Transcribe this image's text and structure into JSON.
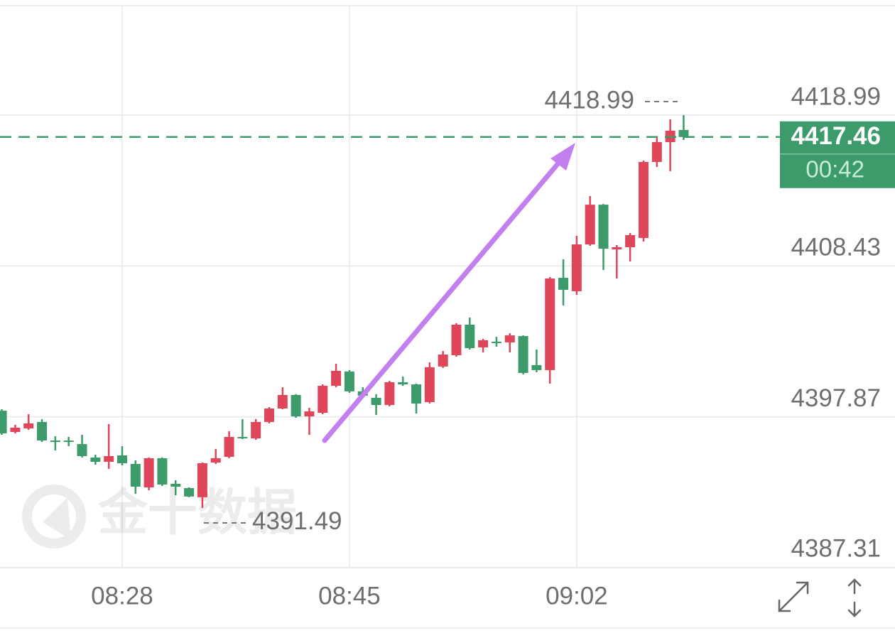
{
  "chart_data": {
    "type": "candlestick",
    "watermark": "金十数据",
    "categories": [
      null,
      null,
      null,
      null,
      null,
      null,
      null,
      null,
      null,
      "08:28",
      null,
      null,
      null,
      null,
      null,
      null,
      null,
      null,
      null,
      null,
      null,
      null,
      null,
      null,
      null,
      null,
      "08:45",
      null,
      null,
      null,
      null,
      null,
      null,
      null,
      null,
      null,
      null,
      null,
      null,
      null,
      null,
      null,
      null,
      "09:02",
      null,
      null,
      null,
      null,
      null,
      null,
      null,
      null
    ],
    "open": [
      4398.3,
      4396.81,
      4397.06,
      4397.51,
      4396.21,
      4396.21,
      4395.96,
      4395.02,
      4394.72,
      4395.17,
      4394.57,
      4392.93,
      4394.97,
      4393.18,
      4392.88,
      4392.24,
      4394.67,
      4395.07,
      4396.46,
      4396.36,
      4397.51,
      4398.45,
      4399.4,
      4397.9,
      4398.15,
      4400.04,
      4401.04,
      4399.65,
      4399.2,
      4398.7,
      4400.29,
      4400.14,
      4398.9,
      4401.39,
      4402.18,
      4404.32,
      4402.73,
      4403.13,
      4403.08,
      4403.52,
      4401.49,
      4401.14,
      4407.6,
      4406.66,
      4409.94,
      4412.72,
      4409.59,
      4409.74,
      4410.39,
      4415.71,
      4417.1,
      4417.95
    ],
    "high": [
      4398.4,
      4397.31,
      4398.05,
      4397.71,
      4396.51,
      4396.46,
      4396.61,
      4395.22,
      4397.36,
      4395.82,
      4394.82,
      4395.02,
      4395.02,
      4393.43,
      4392.93,
      4394.67,
      4395.62,
      4396.86,
      4397.71,
      4397.71,
      4398.55,
      4399.94,
      4399.45,
      4398.5,
      4400.14,
      4401.58,
      4401.14,
      4399.94,
      4399.45,
      4400.39,
      4400.69,
      4400.19,
      4401.68,
      4402.48,
      4404.42,
      4404.82,
      4403.33,
      4403.47,
      4403.72,
      4403.57,
      4402.58,
      4407.65,
      4408.9,
      4410.54,
      4413.32,
      4412.77,
      4409.89,
      4410.74,
      4415.81,
      4417.4,
      4418.69,
      4418.99
    ],
    "low": [
      4396.61,
      4396.71,
      4396.96,
      4396.11,
      4395.52,
      4395.82,
      4395.02,
      4394.52,
      4394.22,
      4394.47,
      4392.48,
      4392.73,
      4393.03,
      4392.38,
      4392.24,
      4391.49,
      4394.57,
      4394.97,
      4396.31,
      4396.26,
      4397.41,
      4398.4,
      4397.8,
      4396.61,
      4398.05,
      4399.94,
      4399.55,
      4399.2,
      4398.0,
      4398.6,
      4400.04,
      4398.1,
      4398.8,
      4401.29,
      4402.08,
      4402.58,
      4402.38,
      4402.78,
      4402.38,
      4400.84,
      4400.99,
      4400.19,
      4405.66,
      4406.41,
      4409.84,
      4408.15,
      4407.55,
      4408.75,
      4410.14,
      4415.36,
      4415.06,
      4417.25
    ],
    "close": [
      4396.71,
      4397.11,
      4397.41,
      4396.21,
      4396.11,
      4396.11,
      4395.12,
      4394.72,
      4395.12,
      4394.62,
      4392.98,
      4394.97,
      4393.13,
      4392.98,
      4392.29,
      4394.62,
      4394.97,
      4396.46,
      4396.36,
      4397.51,
      4398.45,
      4399.4,
      4397.9,
      4398.25,
      4400.04,
      4401.09,
      4399.65,
      4399.35,
      4398.7,
      4400.29,
      4400.14,
      4398.8,
      4401.34,
      4402.23,
      4404.32,
      4402.68,
      4403.23,
      4403.08,
      4403.57,
      4400.94,
      4401.14,
      4407.55,
      4406.76,
      4409.94,
      4412.72,
      4409.64,
      4409.74,
      4410.59,
      4415.71,
      4417.1,
      4417.9,
      4417.46
    ],
    "up_color": "#e0465a",
    "down_color": "#3d9b6b",
    "ylim": [
      4387.31,
      4426.65
    ],
    "yticks": [
      4387.31,
      4397.87,
      4408.43,
      4418.99
    ],
    "grid": true,
    "high_marker": 4418.99,
    "low_marker": 4391.49,
    "last_price": 4417.46,
    "countdown": "00:42"
  }
}
